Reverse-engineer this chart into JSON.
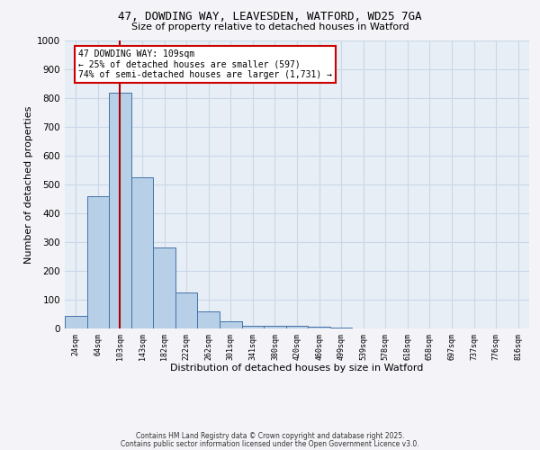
{
  "title_line1": "47, DOWDING WAY, LEAVESDEN, WATFORD, WD25 7GA",
  "title_line2": "Size of property relative to detached houses in Watford",
  "xlabel": "Distribution of detached houses by size in Watford",
  "ylabel": "Number of detached properties",
  "categories": [
    "24sqm",
    "64sqm",
    "103sqm",
    "143sqm",
    "182sqm",
    "222sqm",
    "262sqm",
    "301sqm",
    "341sqm",
    "380sqm",
    "420sqm",
    "460sqm",
    "499sqm",
    "539sqm",
    "578sqm",
    "618sqm",
    "658sqm",
    "697sqm",
    "737sqm",
    "776sqm",
    "816sqm"
  ],
  "values": [
    45,
    460,
    820,
    525,
    280,
    125,
    60,
    25,
    10,
    10,
    10,
    5,
    3,
    0,
    0,
    0,
    0,
    0,
    0,
    0,
    0
  ],
  "bar_color": "#b8cfe8",
  "bar_edge_color": "#4472a8",
  "highlight_index": 2,
  "highlight_line_color": "#aa0000",
  "ylim": [
    0,
    1000
  ],
  "yticks": [
    0,
    100,
    200,
    300,
    400,
    500,
    600,
    700,
    800,
    900,
    1000
  ],
  "grid_color": "#c8d8e8",
  "background_color": "#e8eef5",
  "fig_background": "#f4f4f8",
  "annotation_text": "47 DOWDING WAY: 109sqm\n← 25% of detached houses are smaller (597)\n74% of semi-detached houses are larger (1,731) →",
  "annotation_box_color": "#ffffff",
  "annotation_box_edge": "#cc0000",
  "footer_line1": "Contains HM Land Registry data © Crown copyright and database right 2025.",
  "footer_line2": "Contains public sector information licensed under the Open Government Licence v3.0."
}
